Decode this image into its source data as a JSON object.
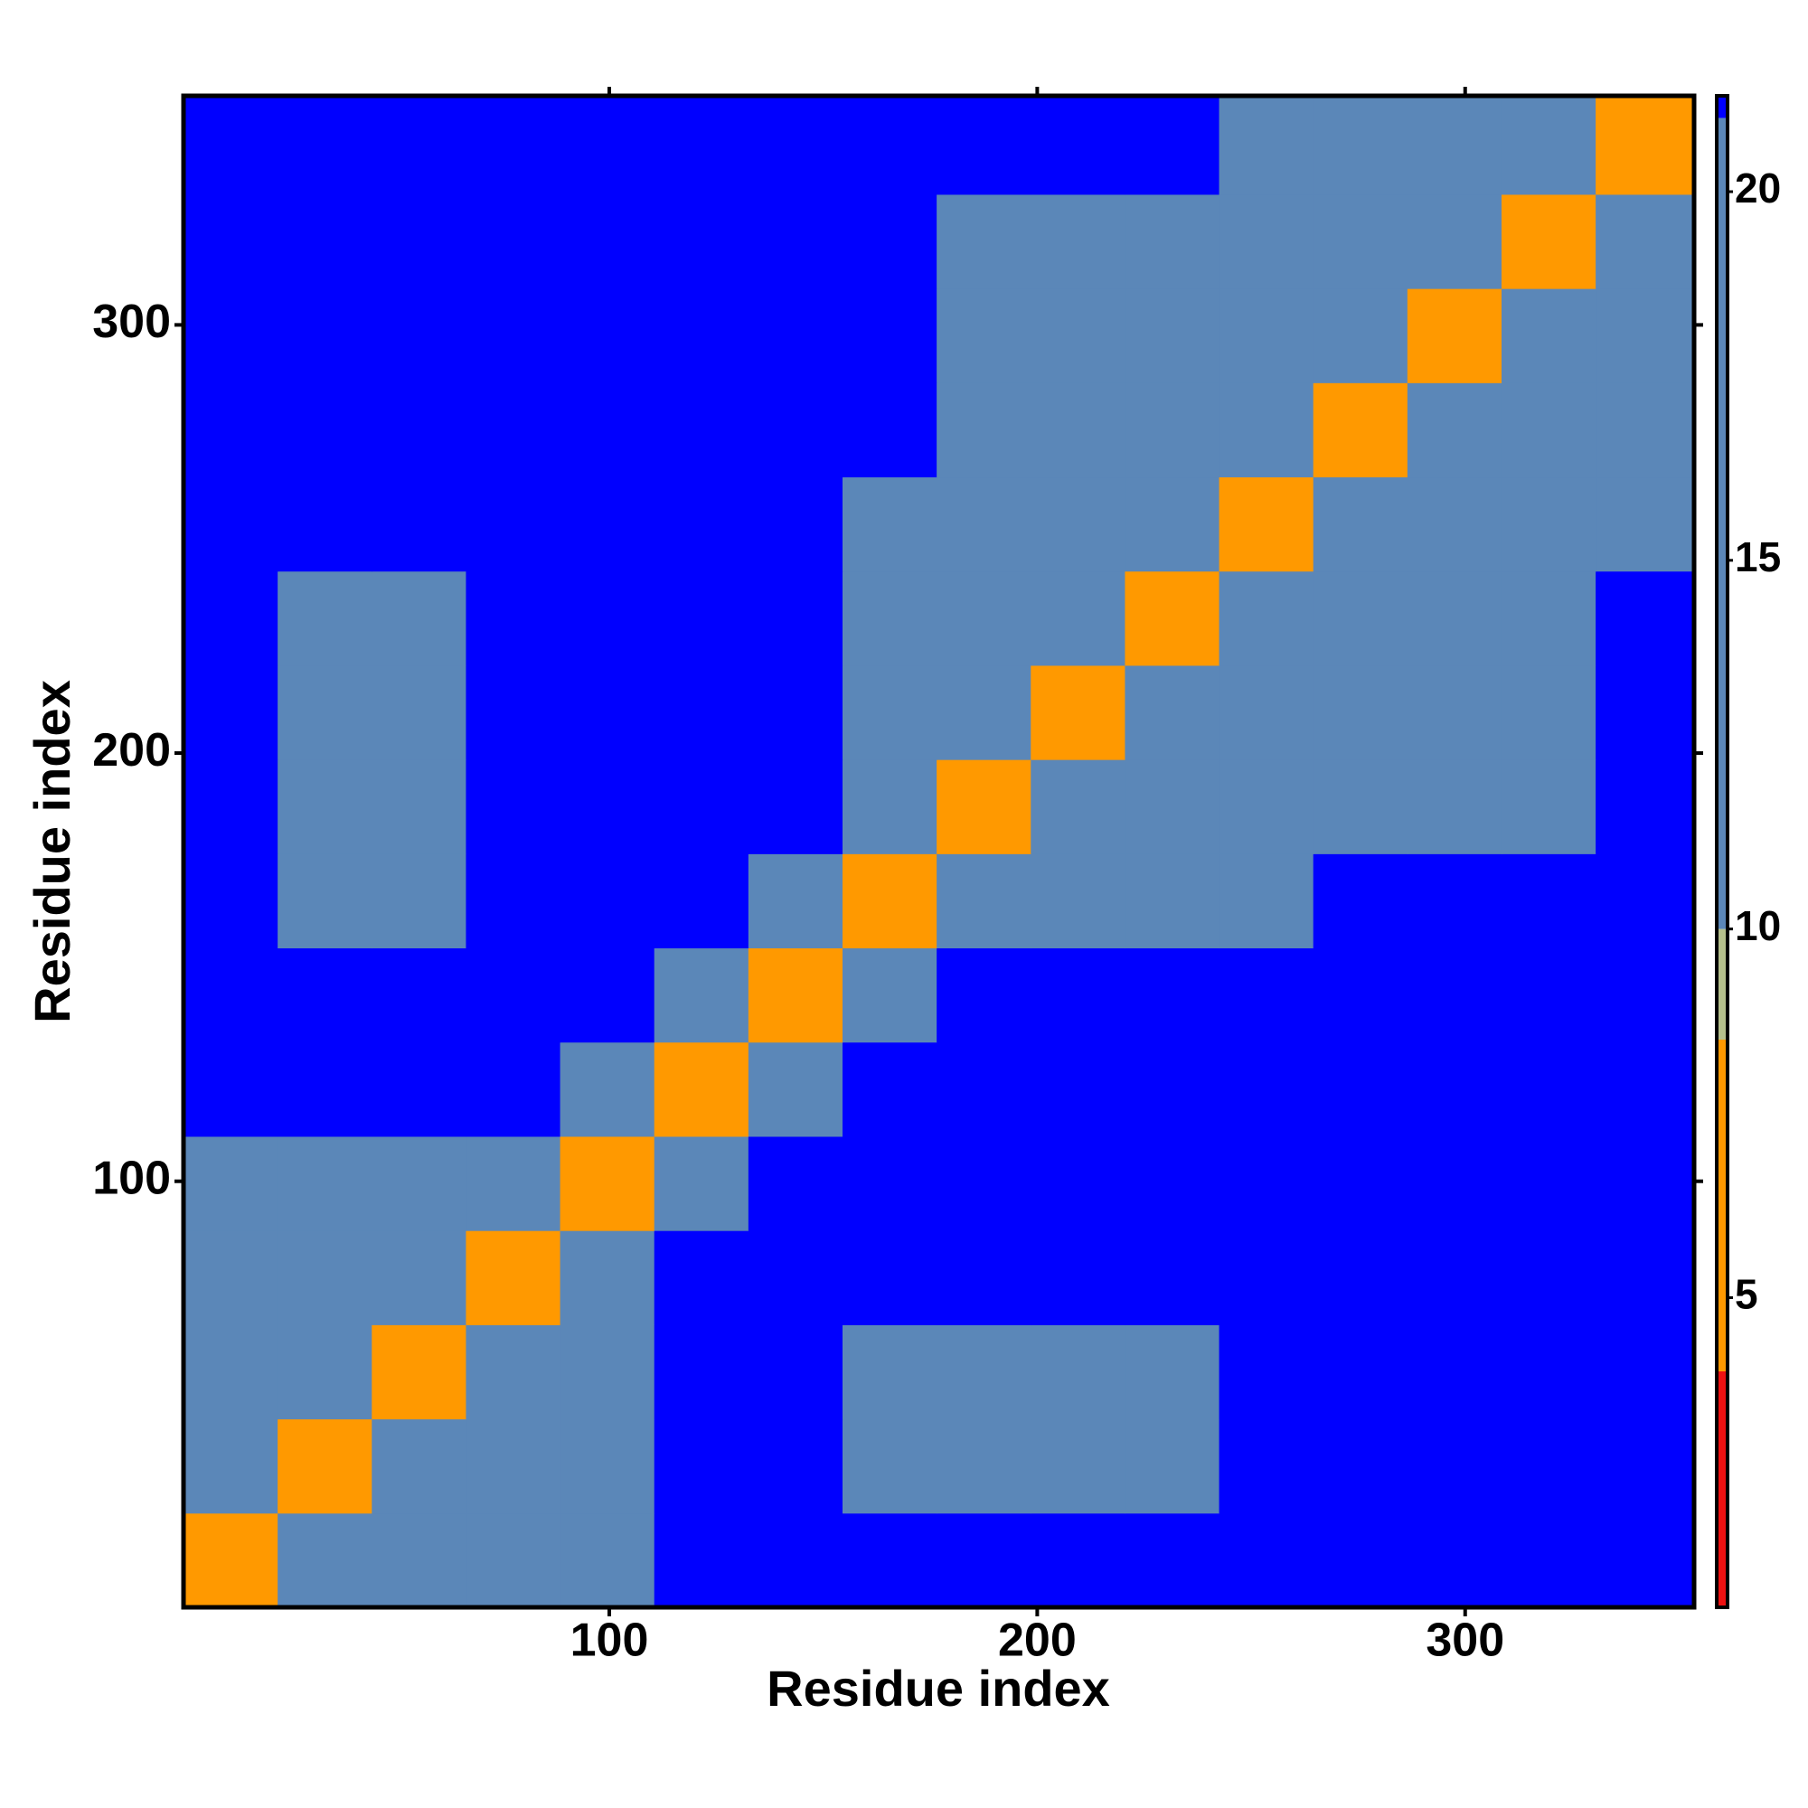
{
  "chart_data": {
    "type": "heatmap",
    "xlabel": "Residue index",
    "ylabel": "Residue index",
    "x_edges": [
      0.5,
      22.5,
      44.5,
      66.5,
      88.5,
      110.5,
      132.5,
      154.5,
      176.5,
      198.5,
      220.5,
      242.5,
      264.5,
      286.5,
      308.5,
      330.5,
      353.5
    ],
    "y_edges": [
      0.5,
      22.5,
      44.5,
      66.5,
      88.5,
      110.5,
      132.5,
      154.5,
      176.5,
      198.5,
      220.5,
      242.5,
      264.5,
      286.5,
      308.5,
      330.5,
      353.5
    ],
    "z": [
      [
        5,
        12,
        12,
        12,
        17,
        22,
        22,
        22,
        22,
        22,
        22,
        22,
        22,
        22,
        22,
        22
      ],
      [
        12,
        5,
        12,
        12,
        17,
        22,
        22,
        20,
        20,
        20,
        20,
        22,
        22,
        22,
        22,
        22
      ],
      [
        12,
        12,
        5,
        12,
        17,
        22,
        22,
        20,
        20,
        20,
        20,
        22,
        22,
        22,
        22,
        22
      ],
      [
        12,
        12,
        12,
        5,
        17,
        22,
        22,
        22,
        22,
        22,
        22,
        22,
        22,
        22,
        22,
        22
      ],
      [
        17,
        17,
        17,
        17,
        6,
        14,
        22,
        22,
        22,
        22,
        22,
        22,
        22,
        22,
        22,
        22
      ],
      [
        22,
        22,
        22,
        22,
        14,
        6,
        16,
        22,
        22,
        22,
        22,
        22,
        22,
        22,
        22,
        22
      ],
      [
        22,
        22,
        22,
        22,
        22,
        16,
        6,
        15,
        22,
        22,
        22,
        22,
        22,
        22,
        22,
        22
      ],
      [
        22,
        20,
        20,
        22,
        22,
        22,
        15,
        5,
        12,
        12,
        12,
        14,
        22,
        22,
        22,
        22
      ],
      [
        22,
        20,
        20,
        22,
        22,
        22,
        22,
        12,
        5,
        12,
        12,
        14,
        18,
        18,
        18,
        22
      ],
      [
        22,
        20,
        20,
        22,
        22,
        22,
        22,
        12,
        12,
        5,
        12,
        14,
        18,
        18,
        18,
        22
      ],
      [
        22,
        20,
        20,
        22,
        22,
        22,
        22,
        12,
        12,
        12,
        5,
        14,
        18,
        18,
        18,
        22
      ],
      [
        22,
        22,
        22,
        22,
        22,
        22,
        22,
        14,
        14,
        14,
        14,
        5,
        13,
        13,
        13,
        19
      ],
      [
        22,
        22,
        22,
        22,
        22,
        22,
        22,
        22,
        18,
        18,
        18,
        13,
        5,
        13,
        13,
        13
      ],
      [
        22,
        22,
        22,
        22,
        22,
        22,
        22,
        22,
        18,
        18,
        18,
        13,
        13,
        5,
        13,
        13
      ],
      [
        22,
        22,
        22,
        22,
        22,
        22,
        22,
        22,
        18,
        18,
        18,
        13,
        13,
        13,
        5,
        13
      ],
      [
        22,
        22,
        22,
        22,
        22,
        22,
        22,
        22,
        22,
        22,
        22,
        19,
        13,
        13,
        13,
        5
      ]
    ],
    "xlim": [
      0.5,
      353.5
    ],
    "ylim": [
      0.5,
      353.5
    ],
    "xticks": [
      100,
      200,
      300
    ],
    "yticks": [
      100,
      200,
      300
    ],
    "colorscale": [
      {
        "value": 4,
        "color": "#ee1111"
      },
      {
        "value": 8.5,
        "color": "#ff9900"
      },
      {
        "value": 10,
        "color": "#b5c08c"
      },
      {
        "value": 21,
        "color": "#5b87b8"
      },
      {
        "value": 21.3,
        "color": "#0000ff"
      }
    ],
    "colorbar_lim": [
      0.8,
      21.3
    ],
    "colorbar_ticks": [
      5,
      10,
      15,
      20
    ]
  }
}
